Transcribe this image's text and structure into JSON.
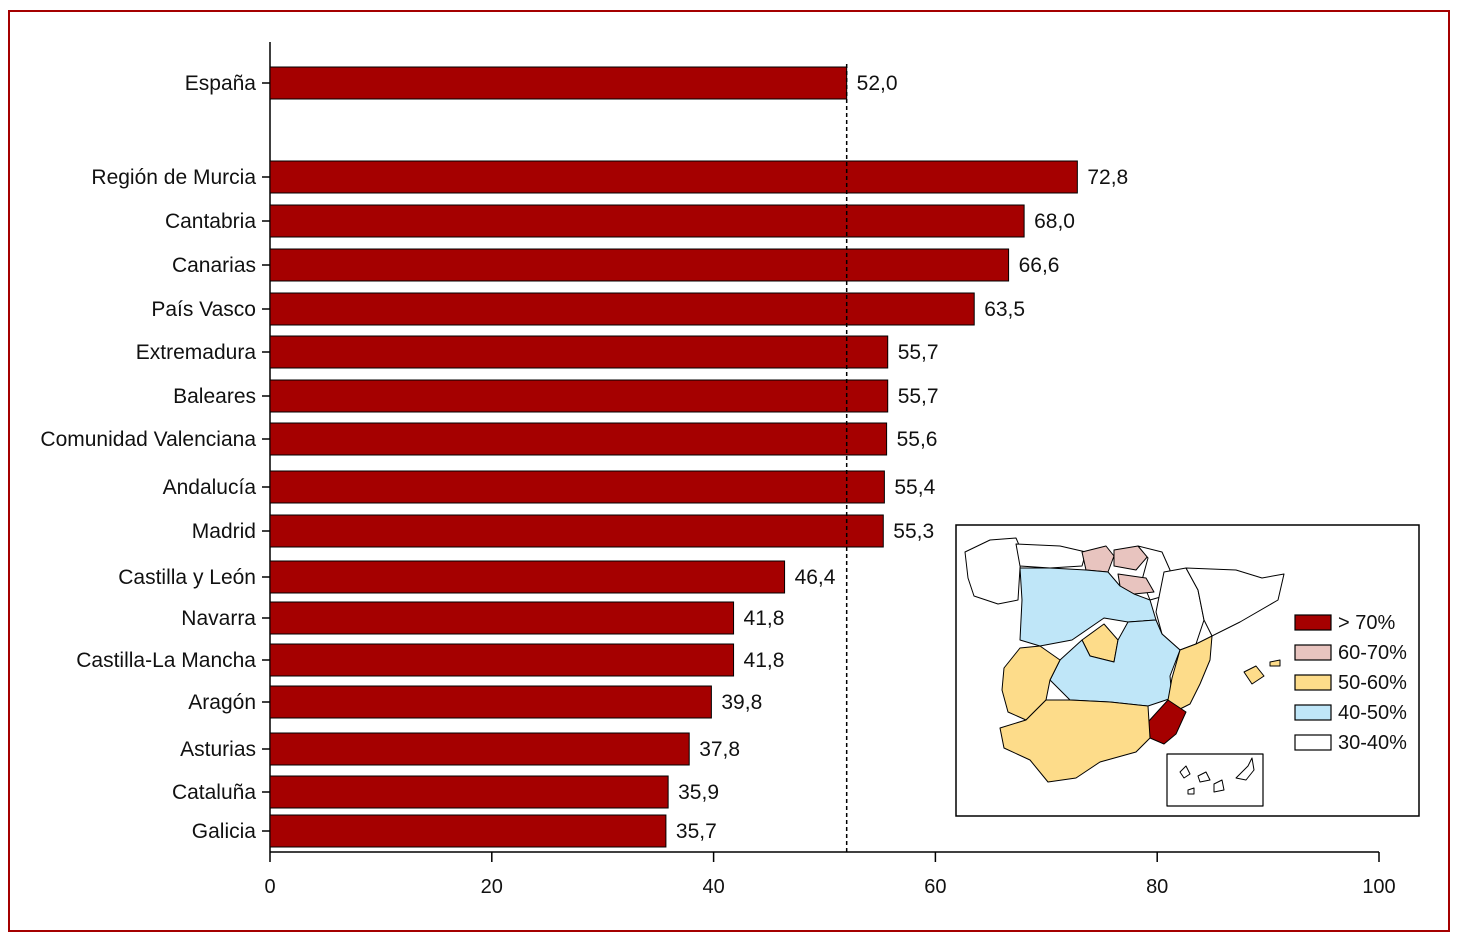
{
  "chart_data": {
    "type": "bar",
    "orientation": "horizontal",
    "categories": [
      "España",
      "Región de Murcia",
      "Cantabria",
      "Canarias",
      "País Vasco",
      "Extremadura",
      "Baleares",
      "Comunidad Valenciana",
      "Andalucía",
      "Madrid",
      "Castilla y León",
      "Navarra",
      "Castilla-La Mancha",
      "Aragón",
      "Asturias",
      "Cataluña",
      "Galicia"
    ],
    "values": [
      52.0,
      72.8,
      68.0,
      66.6,
      63.5,
      55.7,
      55.7,
      55.6,
      55.4,
      55.3,
      46.4,
      41.8,
      41.8,
      39.8,
      37.8,
      35.9,
      35.7
    ],
    "value_labels": [
      "52,0",
      "72,8",
      "68,0",
      "66,6",
      "63,5",
      "55,7",
      "55,7",
      "55,6",
      "55,4",
      "55,3",
      "46,4",
      "41,8",
      "41,8",
      "39,8",
      "37,8",
      "35,9",
      "35,7"
    ],
    "reference_line": 52.0,
    "xlim": [
      0,
      100
    ],
    "xticks": [
      "0",
      "20",
      "40",
      "60",
      "80",
      "100"
    ],
    "bar_color": "#a50000",
    "grid": false,
    "inset_map": {
      "legend": [
        {
          "label": "> 70%",
          "color": "#a50000"
        },
        {
          "label": "60-70%",
          "color": "#e8c4bf"
        },
        {
          "label": "50-60%",
          "color": "#fddc8a"
        },
        {
          "label": "40-50%",
          "color": "#bfe6f8"
        },
        {
          "label": "30-40%",
          "color": "#ffffff"
        }
      ]
    }
  }
}
